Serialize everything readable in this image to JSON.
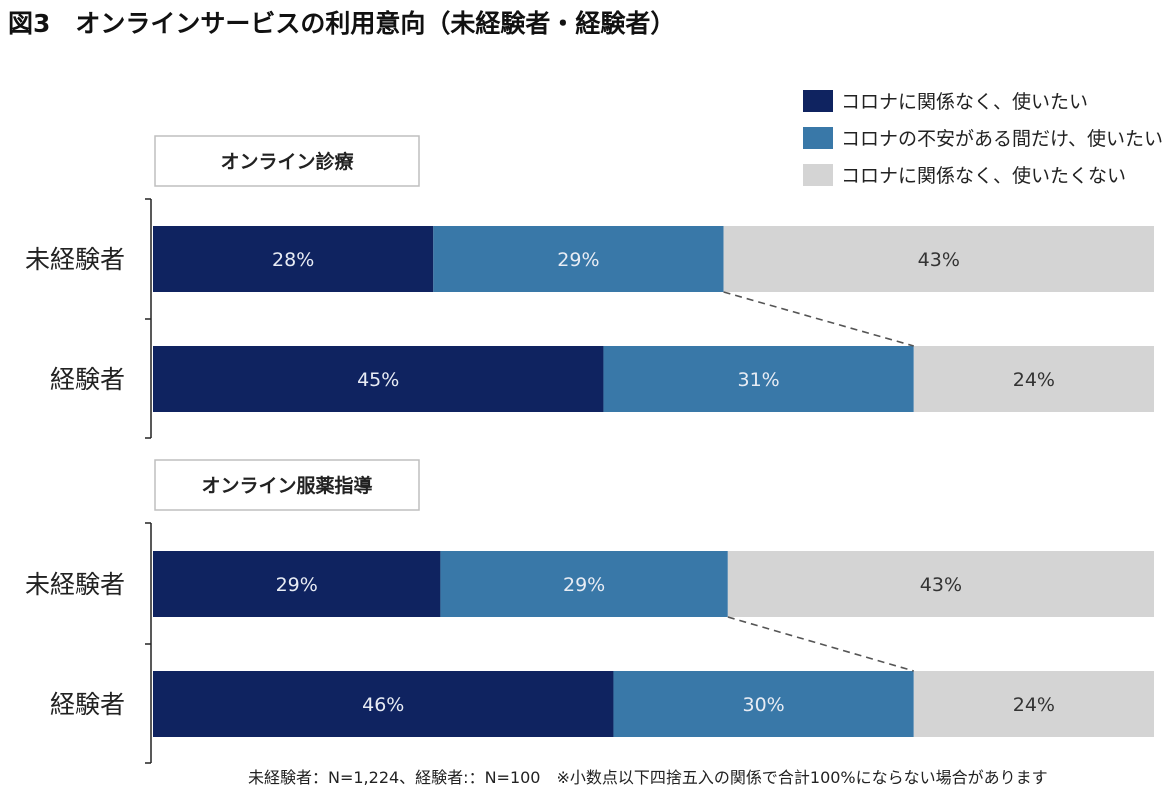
{
  "page": {
    "title": "図3　オンラインサービスの利用意向（未経験者・経験者）",
    "footnote": "未経験者：N=1,224、経験者:：N=100　※小数点以下四捨五入の関係で合計100%にならない場合があります"
  },
  "chart_data": {
    "type": "bar",
    "orientation": "horizontal",
    "stacked": true,
    "percent_stacked": true,
    "legend": {
      "placement": "top-right",
      "entries": [
        {
          "label": "コロナに関係なく、使いたい",
          "color": "#0f2360"
        },
        {
          "label": "コロナの不安がある間だけ、使いたい",
          "color": "#3978a8"
        },
        {
          "label": "コロナに関係なく、使いたくない",
          "color": "#d4d4d4"
        }
      ]
    },
    "groups": [
      {
        "title": "オンライン診療",
        "categories": [
          "未経験者",
          "経験者"
        ],
        "series": [
          {
            "name": "コロナに関係なく、使いたい",
            "values": [
              28,
              45
            ],
            "labels": [
              "28%",
              "45%"
            ]
          },
          {
            "name": "コロナの不安がある間だけ、使いたい",
            "values": [
              29,
              31
            ],
            "labels": [
              "29%",
              "31%"
            ]
          },
          {
            "name": "コロナに関係なく、使いたくない",
            "values": [
              43,
              24
            ],
            "labels": [
              "43%",
              "24%"
            ]
          }
        ]
      },
      {
        "title": "オンライン服薬指導",
        "categories": [
          "未経験者",
          "経験者"
        ],
        "series": [
          {
            "name": "コロナに関係なく、使いたい",
            "values": [
              29,
              46
            ],
            "labels": [
              "29%",
              "46%"
            ]
          },
          {
            "name": "コロナの不安がある間だけ、使いたい",
            "values": [
              29,
              30
            ],
            "labels": [
              "29%",
              "30%"
            ]
          },
          {
            "name": "コロナに関係なく、使いたくない",
            "values": [
              43,
              24
            ],
            "labels": [
              "43%",
              "24%"
            ]
          }
        ]
      }
    ],
    "colors": {
      "label_light": "#e8ecf4",
      "label_dark": "#333333",
      "connector": "#555555",
      "axis": "#222222",
      "box_border": "#bfbfbf"
    }
  }
}
